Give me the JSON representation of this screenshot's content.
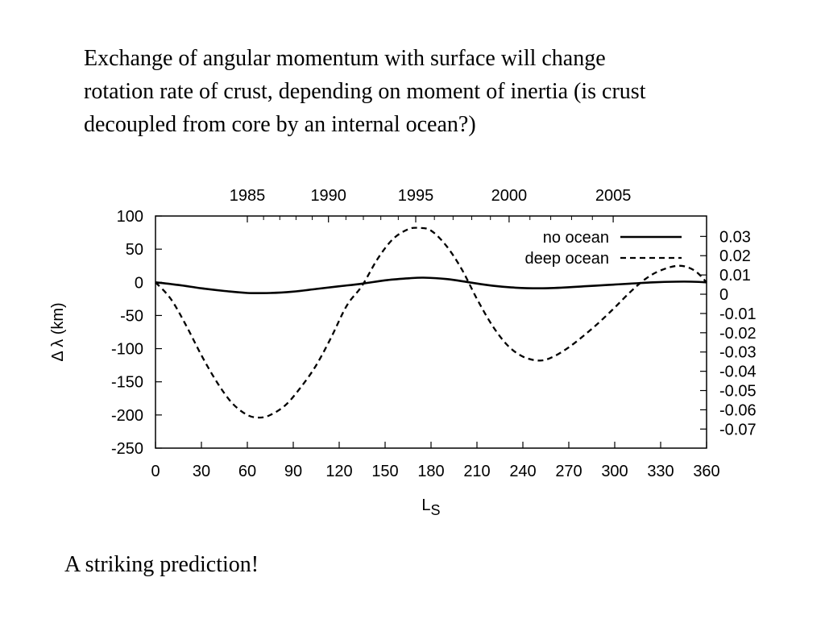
{
  "heading": {
    "lines": [
      "Exchange of angular momentum with surface will change",
      "rotation rate of crust, depending on moment of inertia  (is crust",
      "decoupled from core by an internal ocean?)"
    ]
  },
  "footnote": "A striking prediction!",
  "chart_data": {
    "type": "line",
    "xlabel": "L",
    "xlabel_sub": "S",
    "ylabel": "Δ λ (km)",
    "xlim": [
      0,
      360
    ],
    "ylim": [
      -250,
      100
    ],
    "x_ticks": [
      "0",
      "30",
      "60",
      "90",
      "120",
      "150",
      "180",
      "210",
      "240",
      "270",
      "300",
      "330",
      "360"
    ],
    "y_ticks": [
      "100",
      "50",
      "0",
      "-50",
      "-100",
      "-150",
      "-200",
      "-250"
    ],
    "y_tick_values": [
      100,
      50,
      0,
      -50,
      -100,
      -150,
      -200,
      -250
    ],
    "top_axis": {
      "labels": [
        "1985",
        "1990",
        "1995",
        "2000",
        "2005"
      ],
      "positions_ls": [
        60,
        113,
        170,
        231,
        299
      ]
    },
    "right_axis": {
      "labels": [
        "0.03",
        "0.02",
        "0.01",
        "0",
        "-0.01",
        "-0.02",
        "-0.03",
        "-0.04",
        "-0.05",
        "-0.06",
        "-0.07"
      ],
      "values": [
        0.03,
        0.02,
        0.01,
        0,
        -0.01,
        -0.02,
        -0.03,
        -0.04,
        -0.05,
        -0.06,
        -0.07
      ],
      "ylim": [
        -0.0799,
        0.0406
      ]
    },
    "legend": {
      "placement": "top-right"
    },
    "series": [
      {
        "name": "no ocean",
        "style": "solid",
        "x": [
          0,
          15,
          30,
          45,
          60,
          75,
          90,
          105,
          120,
          135,
          150,
          165,
          175,
          190,
          205,
          220,
          235,
          250,
          265,
          280,
          295,
          310,
          325,
          340,
          350,
          360
        ],
        "y": [
          0,
          -4,
          -9,
          -13,
          -16,
          -16,
          -14,
          -10,
          -6,
          -2,
          3,
          6,
          7,
          5,
          0,
          -5,
          -8,
          -9,
          -8,
          -6,
          -4,
          -2,
          0,
          1,
          1,
          0
        ]
      },
      {
        "name": "deep ocean",
        "style": "dashed",
        "x": [
          0,
          10,
          20,
          30,
          40,
          50,
          60,
          68,
          75,
          85,
          95,
          105,
          115,
          125,
          135,
          145,
          155,
          165,
          172,
          180,
          190,
          200,
          210,
          220,
          230,
          240,
          251,
          260,
          270,
          280,
          290,
          300,
          310,
          320,
          330,
          342,
          352,
          360
        ],
        "y": [
          0,
          -25,
          -65,
          -110,
          -150,
          -182,
          -200,
          -204,
          -200,
          -185,
          -158,
          -125,
          -82,
          -35,
          -5,
          35,
          65,
          80,
          82,
          78,
          55,
          20,
          -25,
          -65,
          -95,
          -112,
          -118,
          -112,
          -98,
          -80,
          -60,
          -38,
          -15,
          5,
          18,
          25,
          18,
          0
        ]
      }
    ]
  }
}
